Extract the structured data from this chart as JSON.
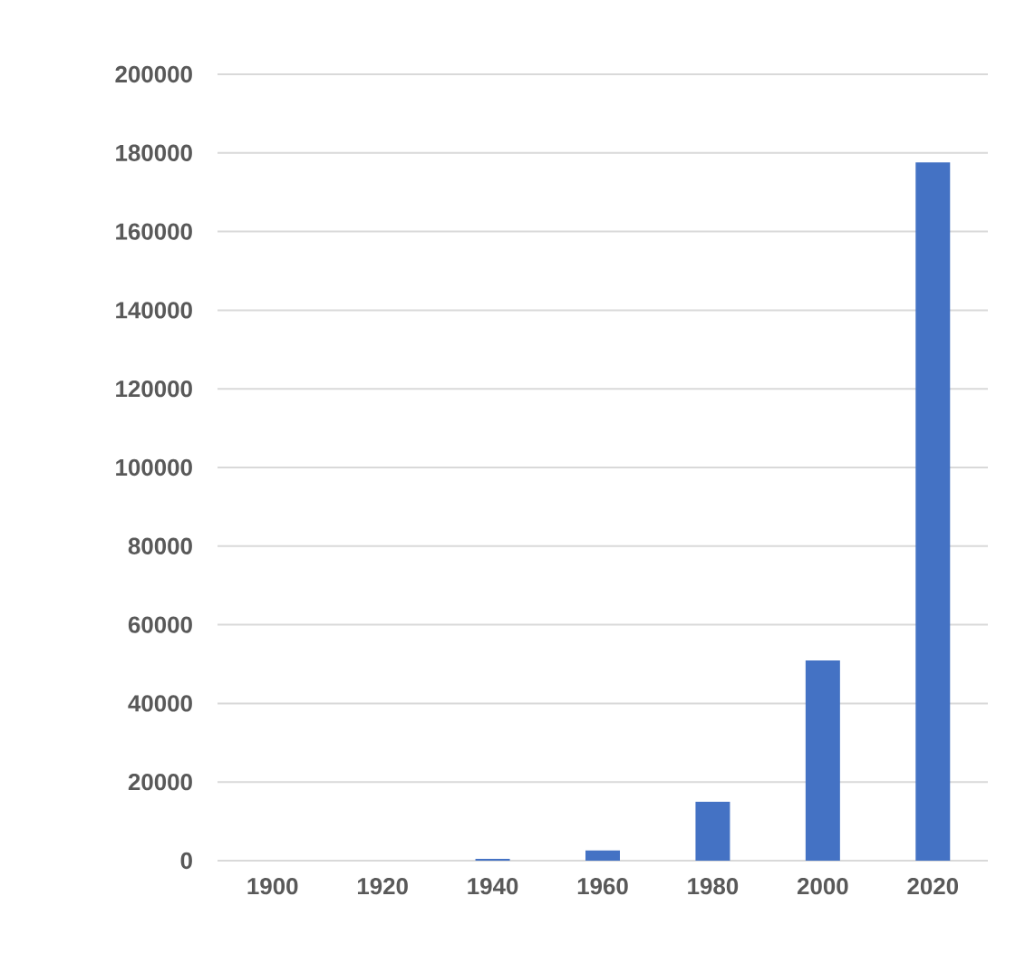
{
  "chart_data": {
    "type": "bar",
    "categories": [
      "1900",
      "1920",
      "1940",
      "1960",
      "1980",
      "2000",
      "2020"
    ],
    "values": [
      0,
      0,
      460,
      2600,
      15000,
      50900,
      177600
    ],
    "color": "#4472c4",
    "ylim": [
      0,
      200000
    ],
    "yticks": [
      0,
      20000,
      40000,
      60000,
      80000,
      100000,
      120000,
      140000,
      160000,
      180000,
      200000
    ],
    "grid": "y"
  }
}
